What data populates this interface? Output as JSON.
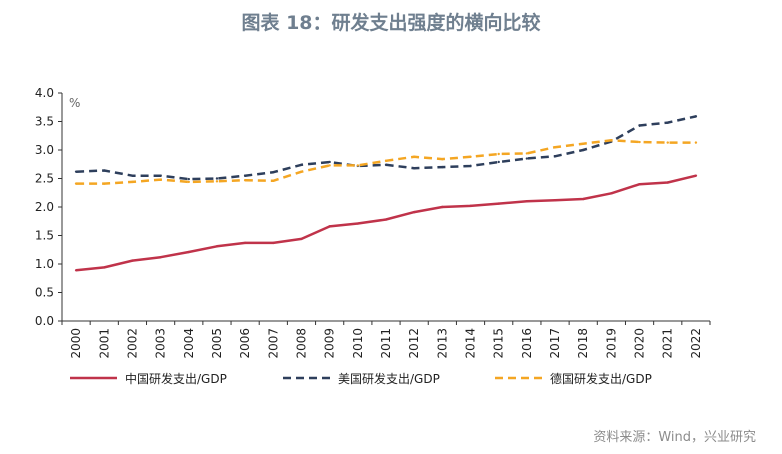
{
  "title": "图表 18：研发支出强度的横向比较",
  "source": "资料来源：Wind，兴业研究",
  "chart_data": {
    "type": "line",
    "unit_label": "%",
    "ylim": [
      0,
      4.0
    ],
    "yticks": [
      "0.0",
      "0.5",
      "1.0",
      "1.5",
      "2.0",
      "2.5",
      "3.0",
      "3.5",
      "4.0"
    ],
    "categories": [
      "2000",
      "2001",
      "2002",
      "2003",
      "2004",
      "2005",
      "2006",
      "2007",
      "2008",
      "2009",
      "2010",
      "2011",
      "2012",
      "2013",
      "2014",
      "2015",
      "2016",
      "2017",
      "2018",
      "2019",
      "2020",
      "2021",
      "2022"
    ],
    "legend_position": "bottom",
    "grid": false,
    "series": [
      {
        "name": "中国研发支出/GDP",
        "color": "#c0334a",
        "style": "solid",
        "values": [
          0.89,
          0.94,
          1.06,
          1.12,
          1.21,
          1.31,
          1.37,
          1.37,
          1.44,
          1.66,
          1.71,
          1.78,
          1.91,
          2.0,
          2.02,
          2.06,
          2.1,
          2.12,
          2.14,
          2.24,
          2.4,
          2.43,
          2.55
        ]
      },
      {
        "name": "美国研发支出/GDP",
        "color": "#2e3f5c",
        "style": "dashed",
        "values": [
          2.62,
          2.64,
          2.55,
          2.55,
          2.49,
          2.5,
          2.55,
          2.61,
          2.74,
          2.79,
          2.72,
          2.74,
          2.68,
          2.7,
          2.72,
          2.79,
          2.85,
          2.89,
          3.0,
          3.15,
          3.43,
          3.48,
          3.59
        ]
      },
      {
        "name": "德国研发支出/GDP",
        "color": "#f4a623",
        "style": "dashed",
        "values": [
          2.41,
          2.41,
          2.44,
          2.48,
          2.44,
          2.45,
          2.47,
          2.46,
          2.62,
          2.73,
          2.73,
          2.81,
          2.88,
          2.84,
          2.88,
          2.93,
          2.94,
          3.05,
          3.11,
          3.17,
          3.14,
          3.13,
          3.13
        ]
      }
    ]
  }
}
